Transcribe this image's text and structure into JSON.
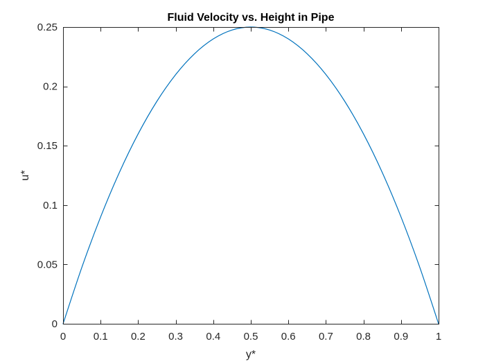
{
  "chart_data": {
    "type": "line",
    "title": "Fluid Velocity vs. Height in Pipe",
    "xlabel": "y*",
    "ylabel": "u*",
    "xlim": [
      0,
      1
    ],
    "ylim": [
      0,
      0.25
    ],
    "x_ticks": [
      0,
      0.1,
      0.2,
      0.3,
      0.4,
      0.5,
      0.6,
      0.7,
      0.8,
      0.9,
      1
    ],
    "x_tick_labels": [
      "0",
      "0.1",
      "0.2",
      "0.3",
      "0.4",
      "0.5",
      "0.6",
      "0.7",
      "0.8",
      "0.9",
      "1"
    ],
    "y_ticks": [
      0,
      0.05,
      0.1,
      0.15,
      0.2,
      0.25
    ],
    "y_tick_labels": [
      "0",
      "0.05",
      "0.1",
      "0.15",
      "0.2",
      "0.25"
    ],
    "grid": false,
    "box": true,
    "series": [
      {
        "color": "#0072BD",
        "x": [
          0,
          0.05,
          0.1,
          0.15,
          0.2,
          0.25,
          0.3,
          0.35,
          0.4,
          0.45,
          0.5,
          0.55,
          0.6,
          0.65,
          0.7,
          0.75,
          0.8,
          0.85,
          0.9,
          0.95,
          1
        ],
        "y": [
          0,
          0.0475,
          0.09,
          0.1275,
          0.16,
          0.1875,
          0.21,
          0.2275,
          0.24,
          0.2475,
          0.25,
          0.2475,
          0.24,
          0.2275,
          0.21,
          0.1875,
          0.16,
          0.1275,
          0.09,
          0.0475,
          0
        ]
      }
    ]
  }
}
